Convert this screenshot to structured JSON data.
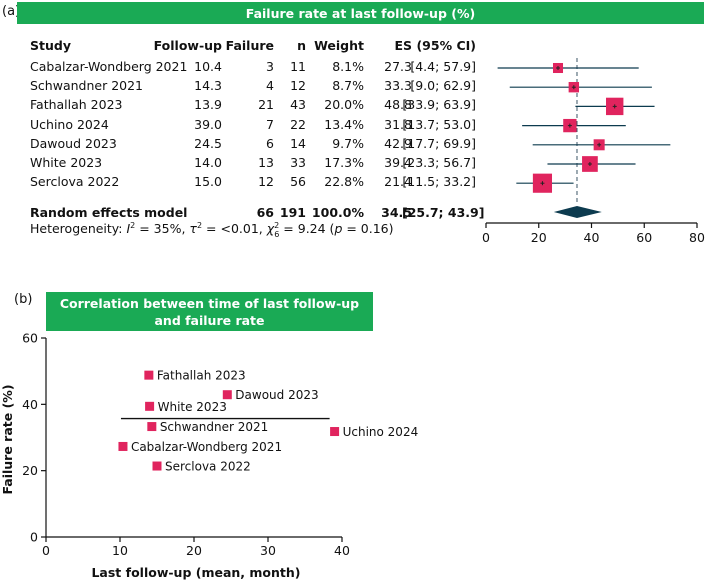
{
  "panel_a_label": "(a)",
  "panel_b_label": "(b)",
  "forest": {
    "banner": "Failure rate at last follow-up (%)",
    "headers": {
      "study": "Study",
      "followup": "Follow-up",
      "failure": "Failure",
      "n": "n",
      "weight": "Weight",
      "es": "ES",
      "ci": "(95% CI)"
    },
    "rows": [
      {
        "study": "Cabalzar-Wondberg 2021",
        "followup": "10.4",
        "failure": "3",
        "n": "11",
        "weight": "8.1%",
        "es": "27.3",
        "ci": "[4.4; 57.9]"
      },
      {
        "study": "Schwandner 2021",
        "followup": "14.3",
        "failure": "4",
        "n": "12",
        "weight": "8.7%",
        "es": "33.3",
        "ci": "[9.0; 62.9]"
      },
      {
        "study": "Fathallah 2023",
        "followup": "13.9",
        "failure": "21",
        "n": "43",
        "weight": "20.0%",
        "es": "48.8",
        "ci": "[33.9; 63.9]"
      },
      {
        "study": "Uchino 2024",
        "followup": "39.0",
        "failure": "7",
        "n": "22",
        "weight": "13.4%",
        "es": "31.8",
        "ci": "[13.7; 53.0]"
      },
      {
        "study": "Dawoud 2023",
        "followup": "24.5",
        "failure": "6",
        "n": "14",
        "weight": "9.7%",
        "es": "42.9",
        "ci": "[17.7; 69.9]"
      },
      {
        "study": "White 2023",
        "followup": "14.0",
        "failure": "13",
        "n": "33",
        "weight": "17.3%",
        "es": "39.4",
        "ci": "[23.3; 56.7]"
      },
      {
        "study": "Serclova 2022",
        "followup": "15.0",
        "failure": "12",
        "n": "56",
        "weight": "22.8%",
        "es": "21.4",
        "ci": "[11.5; 33.2]"
      }
    ],
    "summary": {
      "study": "Random effects model",
      "failure": "66",
      "n": "191",
      "weight": "100.0%",
      "es": "34.5",
      "ci": "[25.7; 43.9]"
    },
    "heterogeneity_label": "Heterogeneity: ",
    "heterogeneity_rest": " = 35%, ",
    "heterogeneity_tau": " = <0.01, ",
    "heterogeneity_chi": " = 9.24 (",
    "heterogeneity_p": " = 0.16)",
    "ci_values": [
      [
        4.4,
        57.9
      ],
      [
        9.0,
        62.9
      ],
      [
        33.9,
        63.9
      ],
      [
        13.7,
        53.0
      ],
      [
        17.7,
        69.9
      ],
      [
        23.3,
        56.7
      ],
      [
        11.5,
        33.2
      ]
    ],
    "summary_ci": [
      25.7,
      43.9
    ],
    "summary_es": 34.5,
    "axis_ticks": [
      0,
      20,
      40,
      60,
      80
    ],
    "axis_range": [
      0,
      80
    ]
  },
  "chart_data": [
    {
      "type": "forest",
      "title": "Failure rate at last follow-up (%)",
      "categories": [
        "Cabalzar-Wondberg 2021",
        "Schwandner 2021",
        "Fathallah 2023",
        "Uchino 2024",
        "Dawoud 2023",
        "White 2023",
        "Serclova 2022"
      ],
      "values": [
        27.3,
        33.3,
        48.8,
        31.8,
        42.9,
        39.4,
        21.4
      ],
      "weights": [
        8.1,
        8.7,
        20.0,
        13.4,
        9.7,
        17.3,
        22.8
      ],
      "pooled": 34.5,
      "xlim": [
        0,
        80
      ]
    },
    {
      "type": "scatter",
      "title": "Correlation between time of last follow-up and failure rate",
      "title_line1": "Correlation between time of last follow-up",
      "title_line2": "and failure rate",
      "xlabel": "Last follow-up (mean, month)",
      "ylabel": "Failure rate (%)",
      "xlim": [
        0,
        40
      ],
      "ylim": [
        0,
        60
      ],
      "xticks": [
        0,
        10,
        20,
        30,
        40
      ],
      "yticks": [
        0,
        20,
        40,
        60
      ],
      "reference_y": 34.5,
      "reference_x_range": [
        10.4,
        39.0
      ],
      "points": [
        {
          "label": "Fathallah 2023",
          "x": 13.9,
          "y": 48.8
        },
        {
          "label": "Dawoud 2023",
          "x": 24.5,
          "y": 42.9
        },
        {
          "label": "White 2023",
          "x": 14.0,
          "y": 39.4
        },
        {
          "label": "Schwandner 2021",
          "x": 14.3,
          "y": 33.3
        },
        {
          "label": "Uchino 2024",
          "x": 39.0,
          "y": 31.8
        },
        {
          "label": "Cabalzar-Wondberg 2021",
          "x": 10.4,
          "y": 27.3
        },
        {
          "label": "Serclova 2022",
          "x": 15.0,
          "y": 21.4
        }
      ]
    }
  ],
  "colors": {
    "green": "#1aaa55",
    "marker": "#e0245e",
    "diamond": "#0d3b4f",
    "line": "#0d3b4f"
  }
}
